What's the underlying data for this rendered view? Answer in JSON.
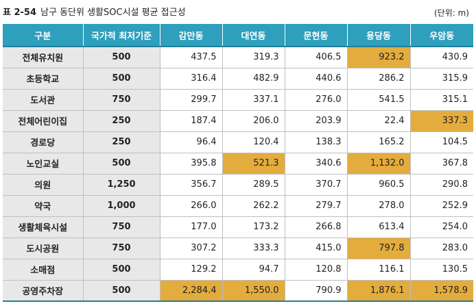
{
  "caption": {
    "table_number": "표 2-54",
    "title": "남구 동단위 생활SOC시설 평균 접근성",
    "unit": "(단위: m)"
  },
  "headers": [
    "구분",
    "국가적 최저기준",
    "감만동",
    "대연동",
    "문현동",
    "용당동",
    "우암동"
  ],
  "highlight_color": "#e3ac3d",
  "header_color": "#2e9fbc",
  "rows": [
    {
      "name": "전체유치원",
      "standard": "500",
      "values": [
        "437.5",
        "319.3",
        "406.5",
        "923.2",
        "430.9"
      ],
      "highlight": [
        false,
        false,
        false,
        true,
        false
      ]
    },
    {
      "name": "초등학교",
      "standard": "500",
      "values": [
        "316.4",
        "482.9",
        "440.6",
        "286.2",
        "315.9"
      ],
      "highlight": [
        false,
        false,
        false,
        false,
        false
      ]
    },
    {
      "name": "도서관",
      "standard": "750",
      "values": [
        "299.7",
        "337.1",
        "276.0",
        "541.5",
        "315.1"
      ],
      "highlight": [
        false,
        false,
        false,
        false,
        false
      ]
    },
    {
      "name": "전체어린이집",
      "standard": "250",
      "values": [
        "187.4",
        "206.0",
        "203.9",
        "22.4",
        "337.3"
      ],
      "highlight": [
        false,
        false,
        false,
        false,
        true
      ]
    },
    {
      "name": "경로당",
      "standard": "250",
      "values": [
        "96.4",
        "120.4",
        "138.3",
        "165.2",
        "104.5"
      ],
      "highlight": [
        false,
        false,
        false,
        false,
        false
      ]
    },
    {
      "name": "노인교실",
      "standard": "500",
      "values": [
        "395.8",
        "521.3",
        "340.6",
        "1,132.0",
        "367.8"
      ],
      "highlight": [
        false,
        true,
        false,
        true,
        false
      ]
    },
    {
      "name": "의원",
      "standard": "1,250",
      "values": [
        "356.7",
        "289.5",
        "370.7",
        "960.5",
        "290.8"
      ],
      "highlight": [
        false,
        false,
        false,
        false,
        false
      ]
    },
    {
      "name": "약국",
      "standard": "1,000",
      "values": [
        "266.0",
        "262.2",
        "279.7",
        "278.0",
        "252.9"
      ],
      "highlight": [
        false,
        false,
        false,
        false,
        false
      ]
    },
    {
      "name": "생활체육시설",
      "standard": "750",
      "values": [
        "177.0",
        "173.2",
        "266.8",
        "613.4",
        "254.0"
      ],
      "highlight": [
        false,
        false,
        false,
        false,
        false
      ]
    },
    {
      "name": "도시공원",
      "standard": "750",
      "values": [
        "307.2",
        "333.3",
        "415.0",
        "797.8",
        "283.0"
      ],
      "highlight": [
        false,
        false,
        false,
        true,
        false
      ]
    },
    {
      "name": "소매점",
      "standard": "500",
      "values": [
        "129.2",
        "94.7",
        "120.8",
        "116.1",
        "130.5"
      ],
      "highlight": [
        false,
        false,
        false,
        false,
        false
      ]
    },
    {
      "name": "공영주차장",
      "standard": "500",
      "values": [
        "2,284.4",
        "1,550.0",
        "790.9",
        "1,876.1",
        "1,578.9"
      ],
      "highlight": [
        true,
        true,
        false,
        true,
        true
      ]
    }
  ]
}
